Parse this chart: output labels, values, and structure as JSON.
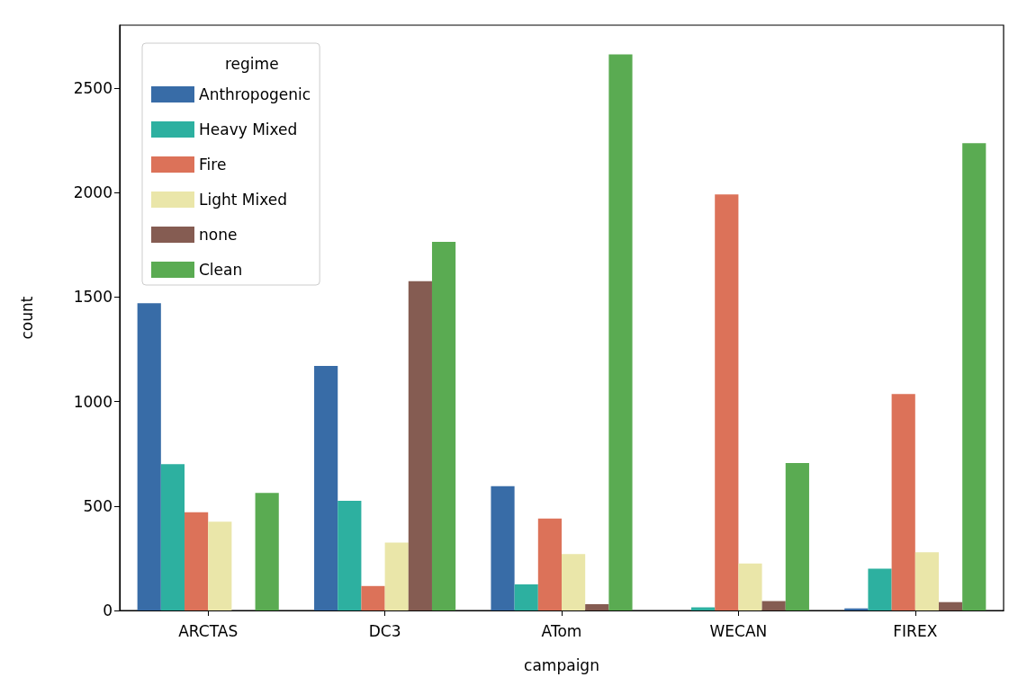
{
  "chart_data": {
    "type": "bar",
    "xlabel": "campaign",
    "ylabel": "count",
    "legend_title": "regime",
    "legend": "top left",
    "grid": false,
    "categories": [
      "ARCTAS",
      "DC3",
      "ATom",
      "WECAN",
      "FIREX"
    ],
    "series": [
      {
        "name": "Anthropogenic",
        "color": "#386ca7",
        "values": [
          1470,
          1170,
          595,
          0,
          10
        ]
      },
      {
        "name": "Heavy Mixed",
        "color": "#2db0a0",
        "values": [
          700,
          525,
          125,
          15,
          200
        ]
      },
      {
        "name": "Fire",
        "color": "#dc7259",
        "values": [
          470,
          117,
          440,
          1990,
          1035
        ]
      },
      {
        "name": "Light Mixed",
        "color": "#eae6a9",
        "values": [
          425,
          325,
          270,
          225,
          278
        ]
      },
      {
        "name": "none",
        "color": "#855c52",
        "values": [
          0,
          1575,
          30,
          45,
          40
        ]
      },
      {
        "name": "Clean",
        "color": "#5aab52",
        "values": [
          562,
          1763,
          2660,
          705,
          2235
        ]
      }
    ],
    "ylim": [
      0,
      2800
    ],
    "yticks": [
      0,
      500,
      1000,
      1500,
      2000,
      2500
    ]
  }
}
